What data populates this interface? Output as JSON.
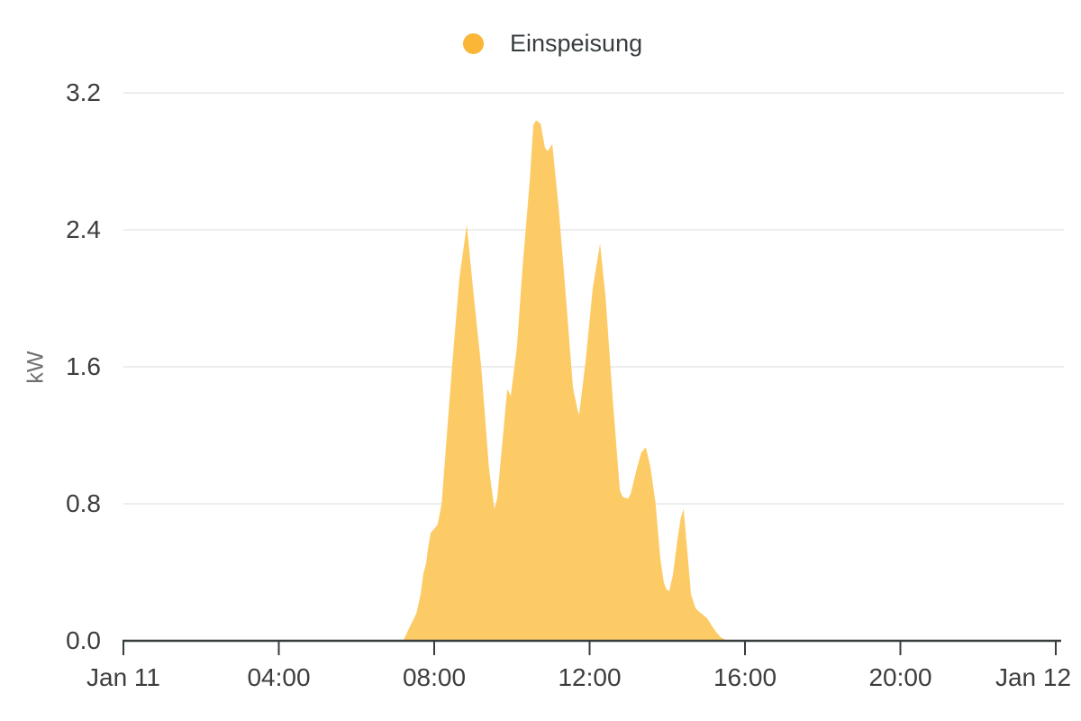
{
  "legend": {
    "label": "Einspeisung"
  },
  "axes": {
    "y_title": "kW"
  },
  "colors": {
    "series": "#FAB637",
    "area_fill": "#FDCB66",
    "grid": "#e7e7e7",
    "axis": "#373d3f",
    "tick_text": "#3d3d3d",
    "muted_text": "#6e6e6e"
  },
  "chart_data": {
    "type": "area",
    "title": "",
    "xlabel": "",
    "ylabel": "kW",
    "ylim": [
      0,
      3.2
    ],
    "x_range_hours": [
      0,
      24
    ],
    "grid": "horizontal-only",
    "legend_position": "top",
    "legend_entries": [
      "Einspeisung"
    ],
    "x_axis": {
      "ticks": [
        {
          "hour": 0,
          "label": "Jan 11"
        },
        {
          "hour": 4,
          "label": "04:00"
        },
        {
          "hour": 8,
          "label": "08:00"
        },
        {
          "hour": 12,
          "label": "12:00"
        },
        {
          "hour": 16,
          "label": "16:00"
        },
        {
          "hour": 20,
          "label": "20:00"
        },
        {
          "hour": 24,
          "label": "Jan 12"
        }
      ]
    },
    "y_axis": {
      "ticks": [
        {
          "value": 0.0,
          "label": "0.0"
        },
        {
          "value": 0.8,
          "label": "0.8"
        },
        {
          "value": 1.6,
          "label": "1.6"
        },
        {
          "value": 2.4,
          "label": "2.4"
        },
        {
          "value": 3.2,
          "label": "3.2"
        }
      ]
    },
    "series": [
      {
        "name": "Einspeisung",
        "unit": "kW",
        "points": [
          [
            7.2,
            0.0
          ],
          [
            7.37,
            0.08
          ],
          [
            7.54,
            0.16
          ],
          [
            7.65,
            0.27
          ],
          [
            7.72,
            0.39
          ],
          [
            7.79,
            0.45
          ],
          [
            7.84,
            0.54
          ],
          [
            7.91,
            0.63
          ],
          [
            8.02,
            0.66
          ],
          [
            8.09,
            0.68
          ],
          [
            8.19,
            0.8
          ],
          [
            8.46,
            1.6
          ],
          [
            8.65,
            2.12
          ],
          [
            8.84,
            2.43
          ],
          [
            9.02,
            2.01
          ],
          [
            9.21,
            1.6
          ],
          [
            9.41,
            1.01
          ],
          [
            9.55,
            0.77
          ],
          [
            9.62,
            0.83
          ],
          [
            9.88,
            1.47
          ],
          [
            9.97,
            1.43
          ],
          [
            10.13,
            1.72
          ],
          [
            10.27,
            2.17
          ],
          [
            10.46,
            2.69
          ],
          [
            10.55,
            3.01
          ],
          [
            10.62,
            3.04
          ],
          [
            10.74,
            3.02
          ],
          [
            10.85,
            2.88
          ],
          [
            10.92,
            2.86
          ],
          [
            11.04,
            2.9
          ],
          [
            11.2,
            2.54
          ],
          [
            11.39,
            2.01
          ],
          [
            11.57,
            1.48
          ],
          [
            11.69,
            1.35
          ],
          [
            11.73,
            1.32
          ],
          [
            11.9,
            1.64
          ],
          [
            12.08,
            2.06
          ],
          [
            12.27,
            2.32
          ],
          [
            12.41,
            2.01
          ],
          [
            12.59,
            1.43
          ],
          [
            12.78,
            0.88
          ],
          [
            12.85,
            0.84
          ],
          [
            12.99,
            0.83
          ],
          [
            13.06,
            0.86
          ],
          [
            13.22,
            1.01
          ],
          [
            13.33,
            1.1
          ],
          [
            13.45,
            1.13
          ],
          [
            13.57,
            1.01
          ],
          [
            13.7,
            0.8
          ],
          [
            13.82,
            0.48
          ],
          [
            13.91,
            0.34
          ],
          [
            13.98,
            0.3
          ],
          [
            14.05,
            0.29
          ],
          [
            14.14,
            0.38
          ],
          [
            14.26,
            0.59
          ],
          [
            14.35,
            0.72
          ],
          [
            14.42,
            0.77
          ],
          [
            14.51,
            0.54
          ],
          [
            14.61,
            0.27
          ],
          [
            14.73,
            0.19
          ],
          [
            14.82,
            0.17
          ],
          [
            14.93,
            0.15
          ],
          [
            15.03,
            0.13
          ],
          [
            15.14,
            0.09
          ],
          [
            15.26,
            0.05
          ],
          [
            15.38,
            0.02
          ],
          [
            15.54,
            0.0
          ]
        ]
      }
    ]
  }
}
